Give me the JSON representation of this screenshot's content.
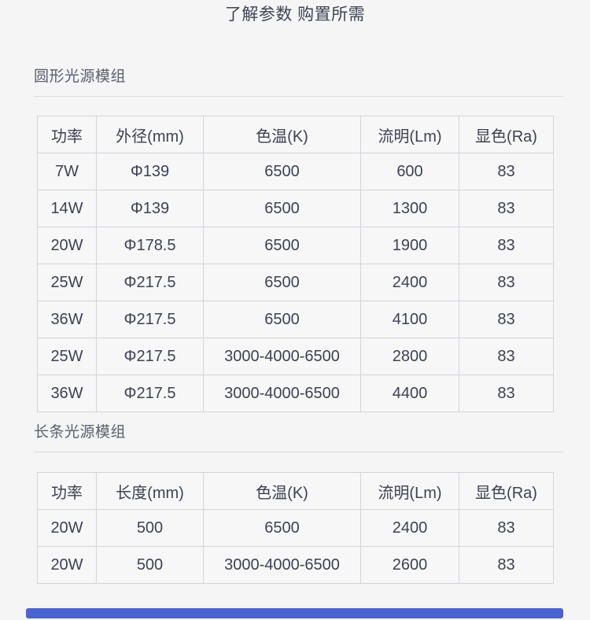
{
  "page": {
    "title": "了解参数 购置所需"
  },
  "sections": [
    {
      "heading": "圆形光源模组",
      "table": {
        "headers": [
          "功率",
          "外径(mm)",
          "色温(K)",
          "流明(Lm)",
          "显色(Ra)"
        ],
        "rows": [
          [
            "7W",
            "Φ139",
            "6500",
            "600",
            "83"
          ],
          [
            "14W",
            "Φ139",
            "6500",
            "1300",
            "83"
          ],
          [
            "20W",
            "Φ178.5",
            "6500",
            "1900",
            "83"
          ],
          [
            "25W",
            "Φ217.5",
            "6500",
            "2400",
            "83"
          ],
          [
            "36W",
            "Φ217.5",
            "6500",
            "4100",
            "83"
          ],
          [
            "25W",
            "Φ217.5",
            "3000-4000-6500",
            "2800",
            "83"
          ],
          [
            "36W",
            "Φ217.5",
            "3000-4000-6500",
            "4400",
            "83"
          ]
        ]
      }
    },
    {
      "heading": "长条光源模组",
      "table": {
        "headers": [
          "功率",
          "长度(mm)",
          "色温(K)",
          "流明(Lm)",
          "显色(Ra)"
        ],
        "rows": [
          [
            "20W",
            "500",
            "6500",
            "2400",
            "83"
          ],
          [
            "20W",
            "500",
            "3000-4000-6500",
            "2600",
            "83"
          ]
        ]
      }
    }
  ],
  "colors": {
    "background": "#f5f5f6",
    "cell_text": "#3d4250",
    "heading_text": "#5a5f69",
    "table_border": "#d3d4da",
    "divider": "#dcdde2",
    "accent_bar": "#4a63d3"
  }
}
